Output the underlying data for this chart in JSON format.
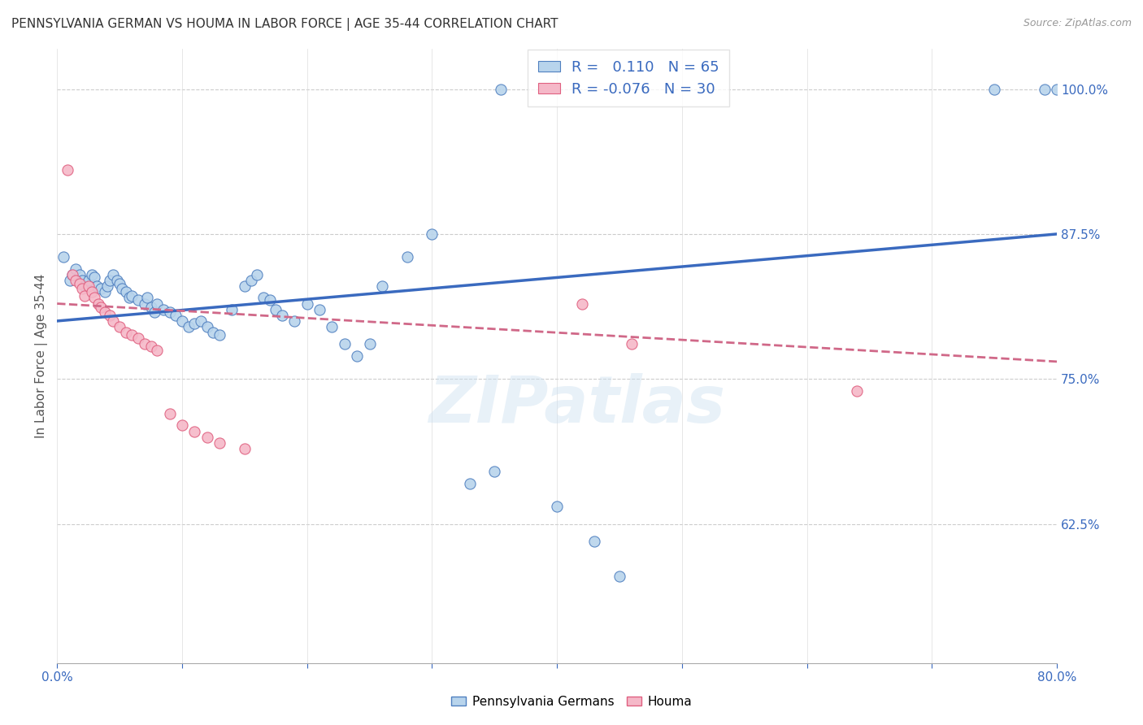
{
  "title": "PENNSYLVANIA GERMAN VS HOUMA IN LABOR FORCE | AGE 35-44 CORRELATION CHART",
  "source": "Source: ZipAtlas.com",
  "ylabel": "In Labor Force | Age 35-44",
  "xlim": [
    0.0,
    0.8
  ],
  "ylim": [
    0.505,
    1.035
  ],
  "yticks": [
    0.625,
    0.75,
    0.875,
    1.0
  ],
  "ytick_labels": [
    "62.5%",
    "75.0%",
    "87.5%",
    "100.0%"
  ],
  "xtick_labels": [
    "0.0%",
    "80.0%"
  ],
  "xtick_positions": [
    0.0,
    0.8
  ],
  "blue_R": 0.11,
  "blue_N": 65,
  "pink_R": -0.076,
  "pink_N": 30,
  "blue_fill": "#b8d4ec",
  "pink_fill": "#f5b8c8",
  "blue_edge": "#5080c0",
  "pink_edge": "#e06080",
  "blue_line_color": "#3a6abf",
  "pink_line_color": "#d06888",
  "watermark": "ZIPatlas",
  "blue_trend_x": [
    0.0,
    0.8
  ],
  "blue_trend_y": [
    0.8,
    0.875
  ],
  "pink_trend_x": [
    0.0,
    0.8
  ],
  "pink_trend_y": [
    0.815,
    0.765
  ],
  "blue_x": [
    0.005,
    0.01,
    0.012,
    0.015,
    0.018,
    0.02,
    0.022,
    0.025,
    0.028,
    0.03,
    0.032,
    0.035,
    0.038,
    0.04,
    0.042,
    0.045,
    0.048,
    0.05,
    0.052,
    0.055,
    0.058,
    0.06,
    0.065,
    0.07,
    0.072,
    0.075,
    0.078,
    0.08,
    0.085,
    0.09,
    0.095,
    0.1,
    0.105,
    0.11,
    0.115,
    0.12,
    0.125,
    0.13,
    0.14,
    0.15,
    0.155,
    0.16,
    0.165,
    0.17,
    0.175,
    0.18,
    0.19,
    0.2,
    0.21,
    0.22,
    0.23,
    0.24,
    0.25,
    0.26,
    0.28,
    0.3,
    0.33,
    0.35,
    0.355,
    0.4,
    0.43,
    0.45,
    0.75,
    0.79,
    0.8
  ],
  "blue_y": [
    0.855,
    0.835,
    0.84,
    0.845,
    0.84,
    0.835,
    0.83,
    0.835,
    0.84,
    0.838,
    0.83,
    0.828,
    0.825,
    0.83,
    0.835,
    0.84,
    0.835,
    0.832,
    0.828,
    0.825,
    0.82,
    0.822,
    0.818,
    0.815,
    0.82,
    0.812,
    0.808,
    0.815,
    0.81,
    0.808,
    0.805,
    0.8,
    0.795,
    0.798,
    0.8,
    0.795,
    0.79,
    0.788,
    0.81,
    0.83,
    0.835,
    0.84,
    0.82,
    0.818,
    0.81,
    0.805,
    0.8,
    0.815,
    0.81,
    0.795,
    0.78,
    0.77,
    0.78,
    0.83,
    0.855,
    0.875,
    0.66,
    0.67,
    1.0,
    0.64,
    0.61,
    0.58,
    1.0,
    1.0,
    1.0
  ],
  "pink_x": [
    0.008,
    0.012,
    0.015,
    0.018,
    0.02,
    0.022,
    0.025,
    0.028,
    0.03,
    0.033,
    0.035,
    0.038,
    0.042,
    0.045,
    0.05,
    0.055,
    0.06,
    0.065,
    0.07,
    0.075,
    0.08,
    0.09,
    0.1,
    0.11,
    0.12,
    0.13,
    0.15,
    0.42,
    0.46,
    0.64
  ],
  "pink_y": [
    0.93,
    0.84,
    0.835,
    0.832,
    0.828,
    0.822,
    0.83,
    0.825,
    0.82,
    0.815,
    0.812,
    0.808,
    0.805,
    0.8,
    0.795,
    0.79,
    0.788,
    0.785,
    0.78,
    0.778,
    0.775,
    0.72,
    0.71,
    0.705,
    0.7,
    0.695,
    0.69,
    0.815,
    0.78,
    0.74
  ]
}
